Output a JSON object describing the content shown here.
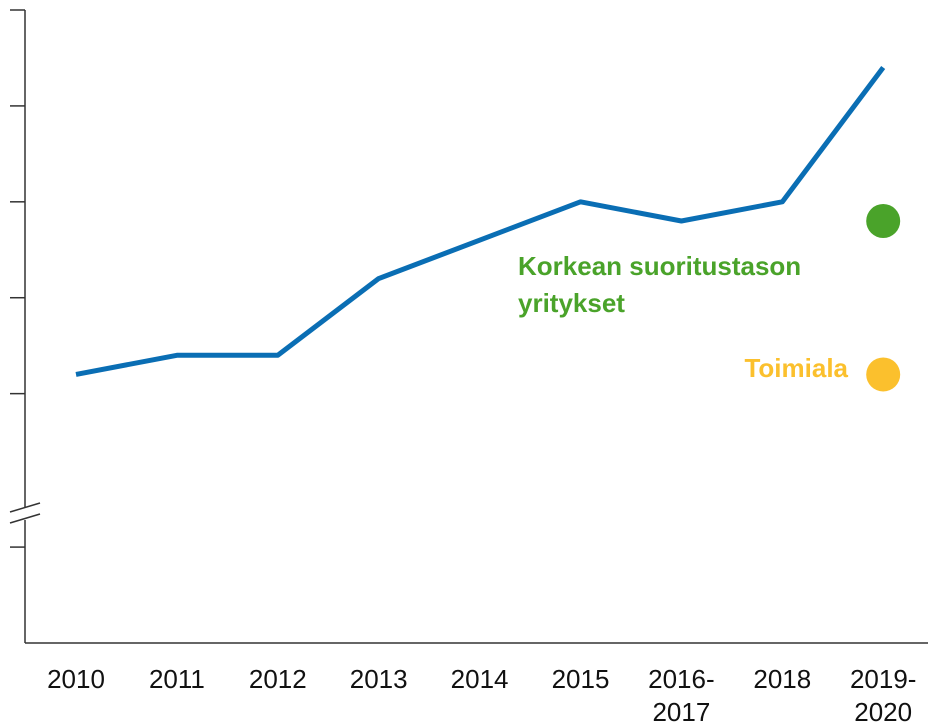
{
  "chart_data": {
    "type": "line",
    "categories": [
      "2010",
      "2011",
      "2012",
      "2013",
      "2014",
      "2015",
      "2016-\n2017",
      "2018",
      "2019-\n2020"
    ],
    "series": [
      {
        "name": null,
        "color": "#0a6eb4",
        "style": "line",
        "values": [
          2.8,
          3.0,
          3.0,
          3.8,
          4.2,
          4.6,
          4.4,
          4.6,
          6.0
        ]
      },
      {
        "name": "Korkean suoritustason\nyritykset",
        "color": "#4aa32a",
        "style": "point",
        "values": [
          null,
          null,
          null,
          null,
          null,
          null,
          null,
          null,
          4.4
        ]
      },
      {
        "name": "Toimiala",
        "color": "#fbc02d",
        "style": "point",
        "values": [
          null,
          null,
          null,
          null,
          null,
          null,
          null,
          null,
          2.8
        ]
      }
    ],
    "ylim": [
      0,
      6.6
    ],
    "yticks": [
      1,
      2.6,
      3.6,
      4.6,
      5.6,
      6.6
    ],
    "grid": false
  }
}
